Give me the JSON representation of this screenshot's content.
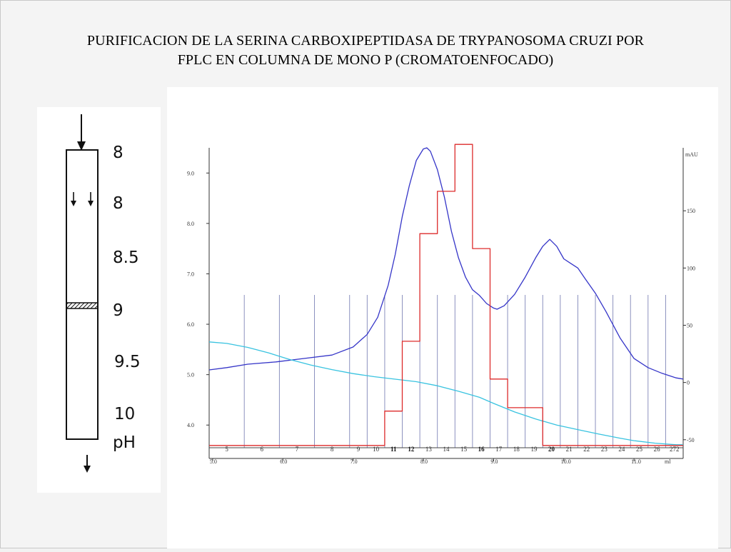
{
  "slide": {
    "title_line1": "PURIFICACION DE LA SERINA CARBOXIPEPTIDASA DE TRYPANOSOMA CRUZI POR",
    "title_line2": "FPLC EN COLUMNA DE MONO P (CROMATOENFOCADO)"
  },
  "column_diagram": {
    "ph_labels": [
      "8",
      "8",
      "8.5",
      "9",
      "9.5",
      "10"
    ],
    "ph_unit": "pH"
  },
  "chart_data": {
    "type": "line",
    "title": "",
    "xlabel": "ml",
    "x_ticks": [
      "5.0",
      "6.0",
      "7.0",
      "8.0",
      "9.0",
      "10.0",
      "11.0"
    ],
    "xlim": [
      4.95,
      11.7
    ],
    "left_axis": {
      "label": "",
      "ticks": [
        "4.0",
        "5.0",
        "6.0",
        "7.0",
        "8.0",
        "9.0"
      ],
      "range": [
        3.55,
        9.5
      ]
    },
    "right_axis": {
      "label": "mAU",
      "ticks": [
        "-50",
        "0",
        "50",
        "100",
        "150"
      ],
      "range": [
        -57,
        205
      ]
    },
    "fraction_numbers": [
      "5",
      "6",
      "7",
      "8",
      "9",
      "10",
      "11",
      "12",
      "13",
      "14",
      "15",
      "16",
      "17",
      "18",
      "19",
      "20",
      "21",
      "22",
      "23",
      "24",
      "25",
      "26",
      "272"
    ],
    "fraction_boundaries_ml": [
      4.95,
      5.45,
      5.95,
      6.45,
      6.95,
      7.2,
      7.45,
      7.7,
      7.95,
      8.2,
      8.45,
      8.7,
      8.95,
      9.2,
      9.45,
      9.7,
      9.95,
      10.2,
      10.45,
      10.7,
      10.95,
      11.2,
      11.45,
      11.7
    ],
    "series": [
      {
        "axis": "right",
        "color": "#3535c8",
        "x": [
          4.95,
          5.2,
          5.5,
          5.9,
          6.3,
          6.7,
          7.0,
          7.2,
          7.35,
          7.5,
          7.6,
          7.7,
          7.8,
          7.9,
          8.0,
          8.05,
          8.1,
          8.2,
          8.3,
          8.4,
          8.5,
          8.6,
          8.7,
          8.8,
          8.9,
          9.0,
          9.05,
          9.15,
          9.3,
          9.45,
          9.6,
          9.7,
          9.8,
          9.9,
          10.0,
          10.1,
          10.2,
          10.3,
          10.45,
          10.6,
          10.8,
          11.0,
          11.2,
          11.4,
          11.6,
          11.7
        ],
        "values": [
          11,
          13,
          16,
          18,
          21,
          24,
          31,
          42,
          57,
          85,
          112,
          145,
          172,
          194,
          204,
          205,
          202,
          186,
          162,
          132,
          109,
          92,
          81,
          76,
          69,
          65,
          64,
          67,
          77,
          92,
          109,
          119,
          125,
          119,
          108,
          104,
          100,
          91,
          78,
          62,
          39,
          21,
          13,
          8,
          4,
          3
        ]
      },
      {
        "axis": "left",
        "color": "#39c3e0",
        "x": [
          4.95,
          5.2,
          5.5,
          5.8,
          6.1,
          6.4,
          6.7,
          7.0,
          7.3,
          7.6,
          7.9,
          8.2,
          8.5,
          8.8,
          9.0,
          9.3,
          9.6,
          9.9,
          10.2,
          10.5,
          10.8,
          11.0,
          11.3,
          11.6,
          11.7
        ],
        "values": [
          5.65,
          5.62,
          5.54,
          5.43,
          5.3,
          5.19,
          5.1,
          5.02,
          4.96,
          4.91,
          4.86,
          4.78,
          4.67,
          4.55,
          4.43,
          4.26,
          4.12,
          4.0,
          3.91,
          3.82,
          3.74,
          3.69,
          3.64,
          3.61,
          3.61
        ]
      },
      {
        "axis": "right",
        "color": "#dd2b2b",
        "step": true,
        "x": [
          4.95,
          7.45,
          7.7,
          7.95,
          8.2,
          8.45,
          8.7,
          8.95,
          9.2,
          9.45,
          9.7,
          9.95,
          11.7
        ],
        "values": [
          -55,
          -25,
          36,
          130,
          167,
          208,
          117,
          3,
          -22,
          -22,
          -55,
          -55,
          -55
        ]
      }
    ]
  }
}
